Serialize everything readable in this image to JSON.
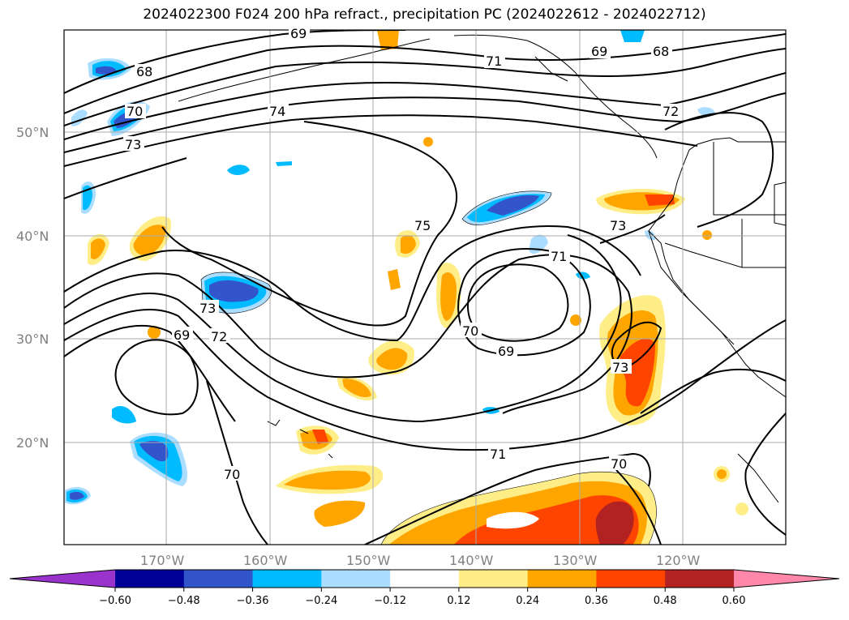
{
  "title": "2024022300 F024 200 hPa refract., precipitation PC (2024022612 - 2024022712)",
  "lat_labels": [
    "50°N",
    "40°N",
    "30°N",
    "20°N"
  ],
  "lon_labels": [
    "170°W",
    "160°W",
    "150°W",
    "140°W",
    "130°W",
    "120°W"
  ],
  "contour_labels": [
    "69",
    "68",
    "70",
    "73",
    "71",
    "74",
    "69",
    "68",
    "72",
    "75",
    "73",
    "71",
    "73",
    "72",
    "69",
    "70",
    "69",
    "73",
    "71",
    "70",
    "70"
  ],
  "colorbar": {
    "ticks": [
      "−0.60",
      "−0.48",
      "−0.36",
      "−0.24",
      "−0.12",
      "0.12",
      "0.24",
      "0.36",
      "0.48",
      "0.60"
    ],
    "colors": [
      "#9933cc",
      "#000099",
      "#3355cc",
      "#00bbff",
      "#aaddff",
      "#ffffff",
      "#ffee88",
      "#ffa500",
      "#ff4400",
      "#b22222",
      "#ff88aa"
    ]
  }
}
